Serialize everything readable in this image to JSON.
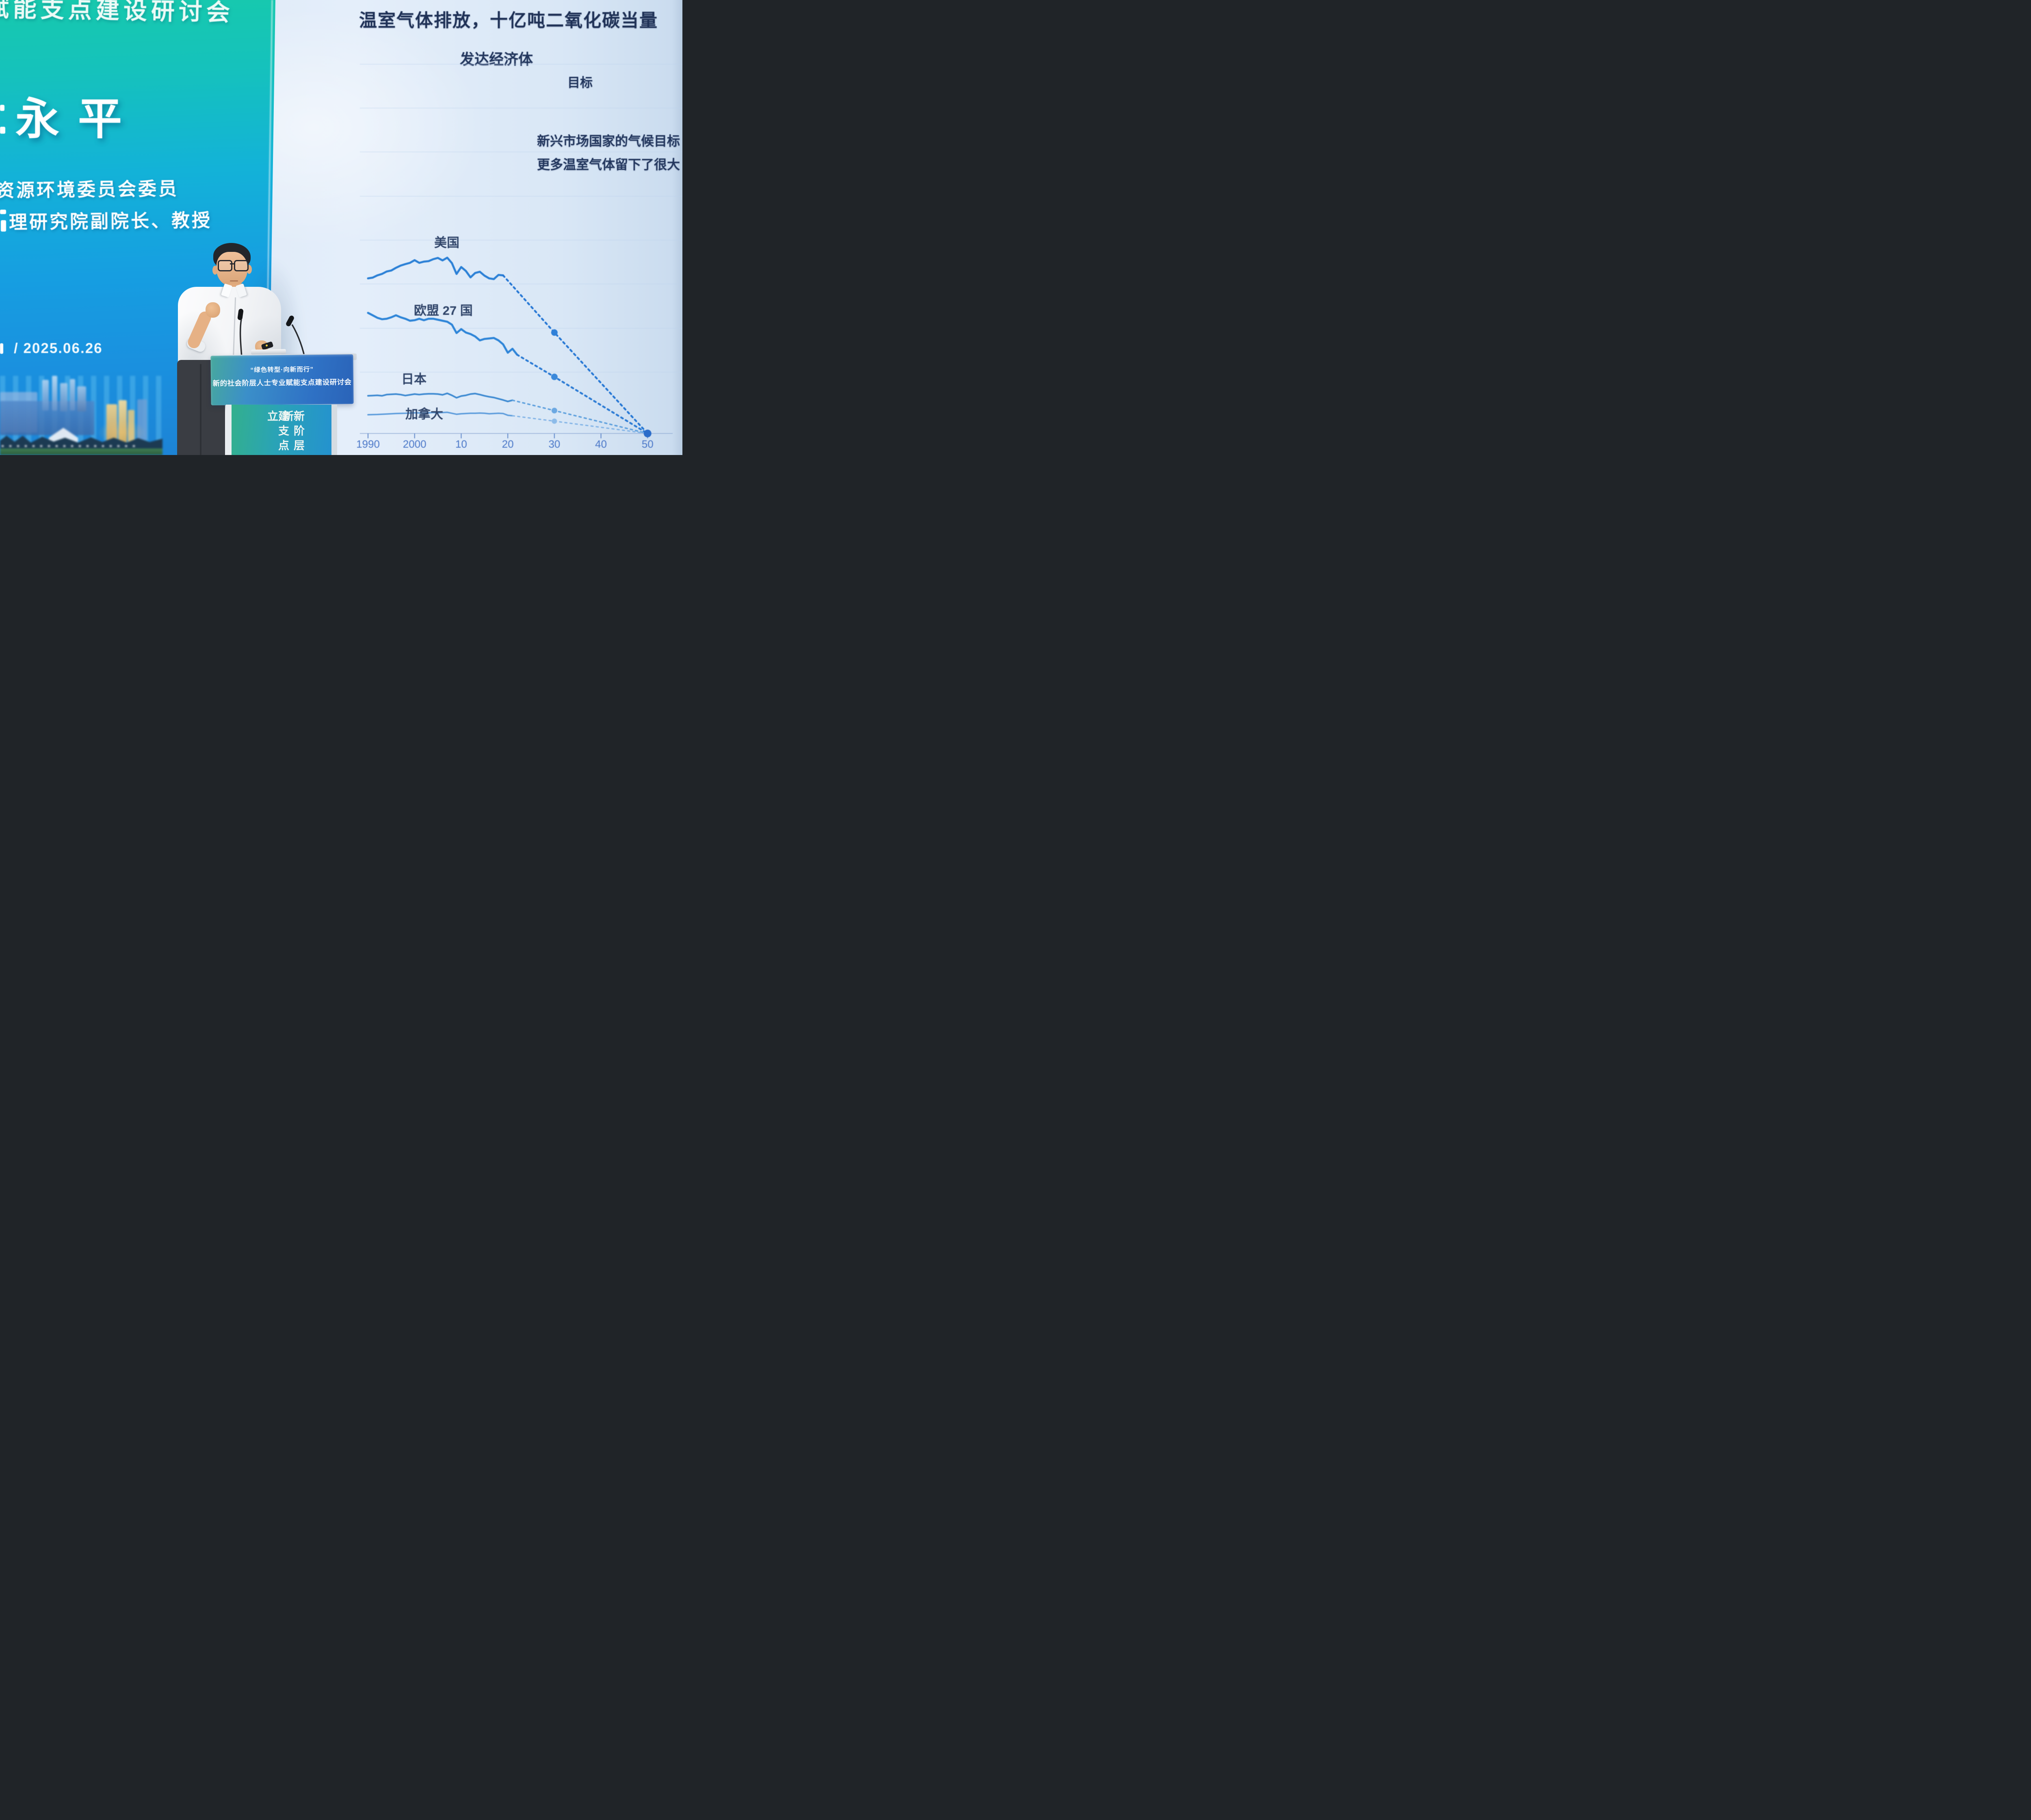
{
  "banner": {
    "event_title_partial": "赋能支点建设研讨会",
    "speaker_name": "永平",
    "role_line1": "资源环境委员会委员",
    "role_line2": "理研究院副院长、教授",
    "date_line": "/ 2025.06.26",
    "colors": {
      "top": "#17c9ad",
      "middle": "#13b2d8",
      "bottom": "#1d83d5"
    }
  },
  "podium": {
    "sign_line1": "“绿色转型·向新而行”",
    "sign_line2": "新的社会阶层人士专业赋能支点建设研讨会",
    "pillar_col_left": "建支点立",
    "pillar_col_right": "新阶层新"
  },
  "slide": {
    "title": "温室气体排放，十亿吨二氧化碳当量",
    "subtitle": "发达经济体",
    "target_label": "目标",
    "notes": [
      "新兴市场国家的气候目标",
      "更多温室气体留下了很大"
    ],
    "background_color": "#e0ebf8",
    "text_color": "#1f3156"
  },
  "chart_data": {
    "type": "line",
    "title": "温室气体排放，十亿吨二氧化碳当量",
    "subtitle": "发达经济体",
    "annotation": "目标",
    "ylabel": "十亿吨二氧化碳当量",
    "ylim": [
      0,
      8
    ],
    "x_domain": [
      1988,
      2052
    ],
    "grid": true,
    "legend_position": "inline-labels",
    "x_ticks": [
      {
        "year": 1990,
        "label": "1990"
      },
      {
        "year": 2000,
        "label": "2000"
      },
      {
        "year": 2010,
        "label": "10"
      },
      {
        "year": 2020,
        "label": "20"
      },
      {
        "year": 2030,
        "label": "30"
      },
      {
        "year": 2040,
        "label": "40"
      },
      {
        "year": 2050,
        "label": "50"
      }
    ],
    "convergence_point": {
      "year": 2050,
      "value": 0
    },
    "series": [
      {
        "name": "美国",
        "color": "#2b80d6",
        "dash_color": "#2476d4",
        "dot_color": "#2f80d8",
        "solid": [
          [
            1990,
            6.3
          ],
          [
            1991,
            6.33
          ],
          [
            1992,
            6.42
          ],
          [
            1993,
            6.48
          ],
          [
            1994,
            6.58
          ],
          [
            1995,
            6.62
          ],
          [
            1996,
            6.73
          ],
          [
            1997,
            6.82
          ],
          [
            1998,
            6.88
          ],
          [
            1999,
            6.93
          ],
          [
            2000,
            7.04
          ],
          [
            2001,
            6.93
          ],
          [
            2002,
            6.98
          ],
          [
            2003,
            7.0
          ],
          [
            2004,
            7.08
          ],
          [
            2005,
            7.13
          ],
          [
            2006,
            7.03
          ],
          [
            2007,
            7.14
          ],
          [
            2008,
            6.92
          ],
          [
            2009,
            6.48
          ],
          [
            2010,
            6.76
          ],
          [
            2011,
            6.6
          ],
          [
            2012,
            6.34
          ],
          [
            2013,
            6.52
          ],
          [
            2014,
            6.57
          ],
          [
            2015,
            6.41
          ],
          [
            2016,
            6.3
          ],
          [
            2017,
            6.27
          ],
          [
            2018,
            6.44
          ],
          [
            2019,
            6.42
          ]
        ],
        "target": [
          [
            2019,
            6.42
          ],
          [
            2030,
            4.1
          ],
          [
            2050,
            0
          ]
        ]
      },
      {
        "name": "欧盟 27 国",
        "color": "#2e85d8",
        "dash_color": "#2a7ad4",
        "dot_color": "#3a88da",
        "solid": [
          [
            1990,
            4.9
          ],
          [
            1991,
            4.8
          ],
          [
            1992,
            4.7
          ],
          [
            1993,
            4.64
          ],
          [
            1994,
            4.66
          ],
          [
            1995,
            4.72
          ],
          [
            1996,
            4.8
          ],
          [
            1997,
            4.72
          ],
          [
            1998,
            4.66
          ],
          [
            1999,
            4.58
          ],
          [
            2000,
            4.6
          ],
          [
            2001,
            4.66
          ],
          [
            2002,
            4.6
          ],
          [
            2003,
            4.66
          ],
          [
            2004,
            4.66
          ],
          [
            2005,
            4.62
          ],
          [
            2006,
            4.58
          ],
          [
            2007,
            4.54
          ],
          [
            2008,
            4.42
          ],
          [
            2009,
            4.08
          ],
          [
            2010,
            4.24
          ],
          [
            2011,
            4.1
          ],
          [
            2012,
            4.04
          ],
          [
            2013,
            3.94
          ],
          [
            2014,
            3.78
          ],
          [
            2015,
            3.84
          ],
          [
            2016,
            3.86
          ],
          [
            2017,
            3.88
          ],
          [
            2018,
            3.78
          ],
          [
            2019,
            3.62
          ],
          [
            2020,
            3.28
          ],
          [
            2021,
            3.44
          ],
          [
            2022,
            3.2
          ]
        ],
        "target": [
          [
            2022,
            3.2
          ],
          [
            2030,
            2.3
          ],
          [
            2050,
            0
          ]
        ]
      },
      {
        "name": "日本",
        "color": "#3f8bd2",
        "dash_color": "#5c9fdd",
        "dot_color": "#6ca8e2",
        "solid": [
          [
            1990,
            1.53
          ],
          [
            1991,
            1.54
          ],
          [
            1992,
            1.55
          ],
          [
            1993,
            1.53
          ],
          [
            1994,
            1.58
          ],
          [
            1995,
            1.59
          ],
          [
            1996,
            1.6
          ],
          [
            1997,
            1.58
          ],
          [
            1998,
            1.54
          ],
          [
            1999,
            1.57
          ],
          [
            2000,
            1.6
          ],
          [
            2001,
            1.58
          ],
          [
            2002,
            1.6
          ],
          [
            2003,
            1.61
          ],
          [
            2004,
            1.61
          ],
          [
            2005,
            1.6
          ],
          [
            2006,
            1.57
          ],
          [
            2007,
            1.63
          ],
          [
            2008,
            1.55
          ],
          [
            2009,
            1.45
          ],
          [
            2010,
            1.52
          ],
          [
            2011,
            1.55
          ],
          [
            2012,
            1.6
          ],
          [
            2013,
            1.62
          ],
          [
            2014,
            1.58
          ],
          [
            2015,
            1.53
          ],
          [
            2016,
            1.49
          ],
          [
            2017,
            1.46
          ],
          [
            2018,
            1.41
          ],
          [
            2019,
            1.36
          ],
          [
            2020,
            1.3
          ],
          [
            2021,
            1.35
          ]
        ],
        "target": [
          [
            2021,
            1.35
          ],
          [
            2030,
            0.93
          ],
          [
            2050,
            0
          ]
        ]
      },
      {
        "name": "加拿大",
        "color": "#5c9cdc",
        "dash_color": "#7fb2e6",
        "dot_color": "#8cbbe9",
        "solid": [
          [
            1990,
            0.76
          ],
          [
            1992,
            0.77
          ],
          [
            1994,
            0.79
          ],
          [
            1996,
            0.81
          ],
          [
            1998,
            0.82
          ],
          [
            2000,
            0.84
          ],
          [
            2002,
            0.83
          ],
          [
            2004,
            0.85
          ],
          [
            2005,
            0.84
          ],
          [
            2006,
            0.85
          ],
          [
            2007,
            0.86
          ],
          [
            2008,
            0.82
          ],
          [
            2009,
            0.78
          ],
          [
            2010,
            0.8
          ],
          [
            2011,
            0.81
          ],
          [
            2012,
            0.82
          ],
          [
            2013,
            0.82
          ],
          [
            2014,
            0.83
          ],
          [
            2015,
            0.82
          ],
          [
            2016,
            0.8
          ],
          [
            2017,
            0.81
          ],
          [
            2018,
            0.82
          ],
          [
            2019,
            0.81
          ],
          [
            2020,
            0.74
          ],
          [
            2021,
            0.72
          ]
        ],
        "target": [
          [
            2021,
            0.72
          ],
          [
            2030,
            0.5
          ],
          [
            2050,
            0
          ]
        ]
      }
    ]
  }
}
